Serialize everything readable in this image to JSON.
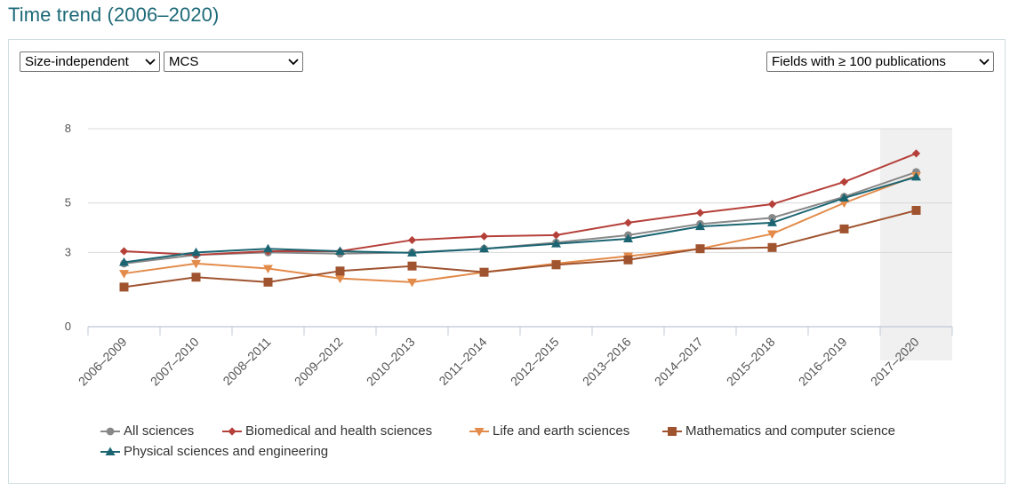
{
  "page": {
    "title": "Time trend (2006–2020)"
  },
  "controls": {
    "indicator_type": "Size-independent",
    "indicator": "MCS",
    "field_filter": "Fields with ≥ 100 publications"
  },
  "colors": {
    "title": "#1d6a78",
    "highlight": "#f0f0f0",
    "grid": "#d8d8d8",
    "axis": "#bcc8d4"
  },
  "icons": {
    "dropdown": "chevron-down-icon"
  },
  "chart_data": {
    "type": "line",
    "title": "",
    "xlabel": "",
    "ylabel": "",
    "categories": [
      "2006–2009",
      "2007–2010",
      "2008–2011",
      "2009–2012",
      "2010–2013",
      "2011–2014",
      "2012–2015",
      "2013–2016",
      "2014–2017",
      "2015–2018",
      "2016–2019",
      "2017–2020"
    ],
    "highlight_category": "2017–2020",
    "ylim": [
      0,
      8
    ],
    "yticks": [
      0,
      3,
      5,
      8
    ],
    "ytick_labels": [
      "0",
      "3",
      "5",
      "8"
    ],
    "grid": true,
    "legend_position": "bottom",
    "series": [
      {
        "name": "All sciences",
        "color": "#888888",
        "marker": "circle",
        "values": [
          2.55,
          2.9,
          3.0,
          2.95,
          3.0,
          3.15,
          3.4,
          3.7,
          4.15,
          4.4,
          5.25,
          6.25
        ]
      },
      {
        "name": "Biomedical and health sciences",
        "color": "#b5403a",
        "marker": "diamond",
        "values": [
          3.05,
          2.9,
          3.05,
          3.05,
          3.5,
          3.65,
          3.7,
          4.2,
          4.6,
          4.95,
          5.85,
          7.0
        ]
      },
      {
        "name": "Life and earth sciences",
        "color": "#e38b4a",
        "marker": "triangle-down",
        "values": [
          2.15,
          2.55,
          2.35,
          1.95,
          1.8,
          2.2,
          2.55,
          2.85,
          3.15,
          3.75,
          5.0,
          6.1
        ]
      },
      {
        "name": "Mathematics and computer science",
        "color": "#a0532f",
        "marker": "square",
        "values": [
          1.6,
          2.0,
          1.8,
          2.25,
          2.45,
          2.2,
          2.5,
          2.7,
          3.15,
          3.2,
          3.95,
          4.7
        ]
      },
      {
        "name": "Physical sciences and engineering",
        "color": "#1b6572",
        "marker": "triangle-up",
        "values": [
          2.6,
          3.0,
          3.15,
          3.05,
          2.98,
          3.15,
          3.35,
          3.55,
          4.05,
          4.2,
          5.2,
          6.05
        ]
      }
    ]
  }
}
